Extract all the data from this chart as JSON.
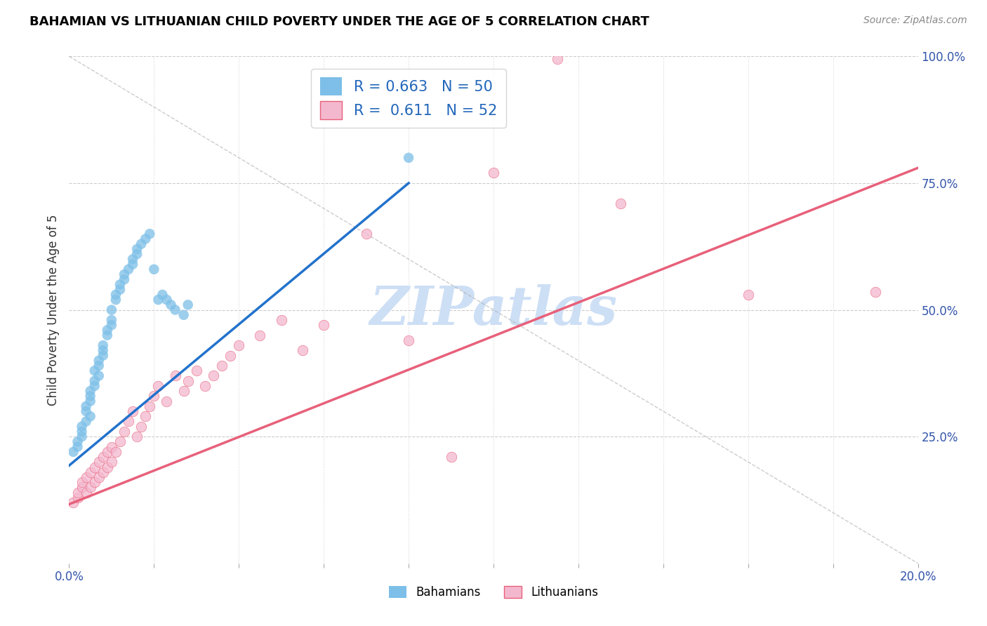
{
  "title": "BAHAMIAN VS LITHUANIAN CHILD POVERTY UNDER THE AGE OF 5 CORRELATION CHART",
  "source": "Source: ZipAtlas.com",
  "ylabel": "Child Poverty Under the Age of 5",
  "bahamian_R": 0.663,
  "bahamian_N": 50,
  "lithuanian_R": 0.611,
  "lithuanian_N": 52,
  "blue_color": "#7dbfe8",
  "pink_color": "#f4b8ce",
  "blue_line_color": "#2272cc",
  "pink_line_color": "#e8607a",
  "watermark_color": "#cddff5",
  "xlim": [
    0.0,
    0.2
  ],
  "ylim": [
    0.0,
    1.0
  ],
  "bahamian_x": [
    0.001,
    0.002,
    0.002,
    0.003,
    0.003,
    0.003,
    0.004,
    0.004,
    0.004,
    0.005,
    0.005,
    0.005,
    0.005,
    0.006,
    0.006,
    0.006,
    0.007,
    0.007,
    0.007,
    0.008,
    0.008,
    0.008,
    0.009,
    0.009,
    0.01,
    0.01,
    0.01,
    0.011,
    0.011,
    0.012,
    0.012,
    0.013,
    0.013,
    0.014,
    0.015,
    0.015,
    0.016,
    0.016,
    0.017,
    0.018,
    0.019,
    0.02,
    0.021,
    0.022,
    0.023,
    0.024,
    0.025,
    0.027,
    0.028,
    0.08
  ],
  "bahamian_y": [
    0.22,
    0.24,
    0.23,
    0.25,
    0.26,
    0.27,
    0.28,
    0.3,
    0.31,
    0.29,
    0.32,
    0.33,
    0.34,
    0.35,
    0.36,
    0.38,
    0.37,
    0.39,
    0.4,
    0.41,
    0.42,
    0.43,
    0.45,
    0.46,
    0.47,
    0.48,
    0.5,
    0.52,
    0.53,
    0.54,
    0.55,
    0.56,
    0.57,
    0.58,
    0.59,
    0.6,
    0.61,
    0.62,
    0.63,
    0.64,
    0.65,
    0.58,
    0.52,
    0.53,
    0.52,
    0.51,
    0.5,
    0.49,
    0.51,
    0.8
  ],
  "lithuanian_x": [
    0.001,
    0.002,
    0.002,
    0.003,
    0.003,
    0.004,
    0.004,
    0.005,
    0.005,
    0.006,
    0.006,
    0.007,
    0.007,
    0.008,
    0.008,
    0.009,
    0.009,
    0.01,
    0.01,
    0.011,
    0.012,
    0.013,
    0.014,
    0.015,
    0.016,
    0.017,
    0.018,
    0.019,
    0.02,
    0.021,
    0.023,
    0.025,
    0.027,
    0.028,
    0.03,
    0.032,
    0.034,
    0.036,
    0.038,
    0.04,
    0.045,
    0.05,
    0.055,
    0.06,
    0.07,
    0.08,
    0.09,
    0.1,
    0.115,
    0.13,
    0.16,
    0.19
  ],
  "lithuanian_y": [
    0.12,
    0.13,
    0.14,
    0.15,
    0.16,
    0.14,
    0.17,
    0.15,
    0.18,
    0.16,
    0.19,
    0.17,
    0.2,
    0.18,
    0.21,
    0.19,
    0.22,
    0.2,
    0.23,
    0.22,
    0.24,
    0.26,
    0.28,
    0.3,
    0.25,
    0.27,
    0.29,
    0.31,
    0.33,
    0.35,
    0.32,
    0.37,
    0.34,
    0.36,
    0.38,
    0.35,
    0.37,
    0.39,
    0.41,
    0.43,
    0.45,
    0.48,
    0.42,
    0.47,
    0.65,
    0.44,
    0.21,
    0.77,
    0.995,
    0.71,
    0.53,
    0.535
  ]
}
